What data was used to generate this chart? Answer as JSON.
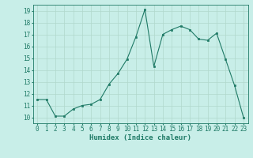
{
  "x": [
    0,
    1,
    2,
    3,
    4,
    5,
    6,
    7,
    8,
    9,
    10,
    11,
    12,
    13,
    14,
    15,
    16,
    17,
    18,
    19,
    20,
    21,
    22,
    23
  ],
  "y": [
    11.5,
    11.5,
    10.1,
    10.1,
    10.7,
    11.0,
    11.1,
    11.5,
    12.8,
    13.7,
    14.9,
    16.8,
    19.1,
    14.3,
    17.0,
    17.4,
    17.7,
    17.4,
    16.6,
    16.5,
    17.1,
    14.9,
    12.7,
    10.0
  ],
  "xlabel": "Humidex (Indice chaleur)",
  "xlim": [
    -0.5,
    23.5
  ],
  "ylim": [
    9.5,
    19.5
  ],
  "yticks": [
    10,
    11,
    12,
    13,
    14,
    15,
    16,
    17,
    18,
    19
  ],
  "xticks": [
    0,
    1,
    2,
    3,
    4,
    5,
    6,
    7,
    8,
    9,
    10,
    11,
    12,
    13,
    14,
    15,
    16,
    17,
    18,
    19,
    20,
    21,
    22,
    23
  ],
  "line_color": "#1f7a66",
  "bg_color": "#c8eee8",
  "grid_color": "#b0d8cc",
  "label_fontsize": 6.5,
  "tick_fontsize": 5.5
}
